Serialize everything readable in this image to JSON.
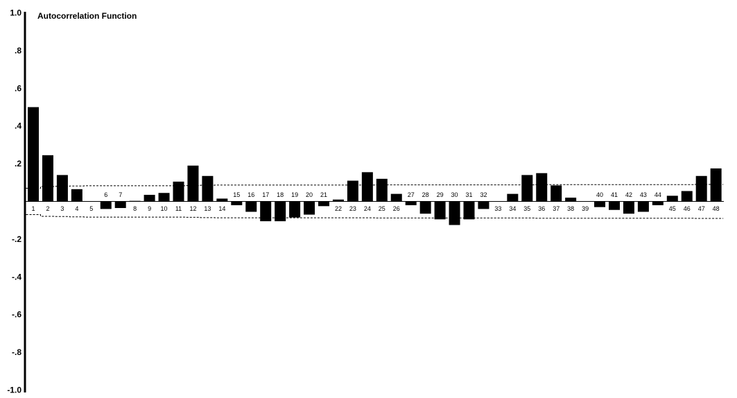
{
  "chart_data": {
    "type": "bar",
    "title": "Autocorrelation Function",
    "xlabel": "",
    "ylabel": "",
    "ylim": [
      -1.0,
      1.0
    ],
    "yticks": [
      {
        "value": 1.0,
        "label": "1.0"
      },
      {
        "value": 0.8,
        "label": ".8"
      },
      {
        "value": 0.6,
        "label": ".6"
      },
      {
        "value": 0.4,
        "label": ".4"
      },
      {
        "value": 0.2,
        "label": ".2"
      },
      {
        "value": -0.2,
        "label": "-.2"
      },
      {
        "value": -0.4,
        "label": "-.4"
      },
      {
        "value": -0.6,
        "label": "-.6"
      },
      {
        "value": -0.8,
        "label": "-.8"
      },
      {
        "value": -1.0,
        "label": "-1.0"
      }
    ],
    "categories": [
      "1",
      "2",
      "3",
      "4",
      "5",
      "6",
      "7",
      "8",
      "9",
      "10",
      "11",
      "12",
      "13",
      "14",
      "15",
      "16",
      "17",
      "18",
      "19",
      "20",
      "21",
      "22",
      "23",
      "24",
      "25",
      "26",
      "27",
      "28",
      "29",
      "30",
      "31",
      "32",
      "33",
      "34",
      "35",
      "36",
      "37",
      "38",
      "39",
      "40",
      "41",
      "42",
      "43",
      "44",
      "45",
      "46",
      "47",
      "48"
    ],
    "values": [
      0.5,
      0.245,
      0.14,
      0.065,
      0.0,
      -0.04,
      -0.035,
      0.003,
      0.035,
      0.045,
      0.105,
      0.19,
      0.135,
      0.015,
      -0.02,
      -0.055,
      -0.105,
      -0.105,
      -0.085,
      -0.07,
      -0.025,
      0.01,
      0.11,
      0.155,
      0.12,
      0.04,
      -0.02,
      -0.065,
      -0.095,
      -0.125,
      -0.095,
      -0.04,
      0.0,
      0.04,
      0.14,
      0.15,
      0.085,
      0.02,
      0.0,
      -0.03,
      -0.045,
      -0.065,
      -0.055,
      -0.02,
      0.03,
      0.055,
      0.135,
      0.175
    ],
    "confidence_band": {
      "upper": [
        0.07,
        0.079,
        0.08,
        0.082,
        0.083,
        0.083,
        0.083,
        0.083,
        0.083,
        0.083,
        0.083,
        0.084,
        0.086,
        0.087,
        0.087,
        0.087,
        0.087,
        0.087,
        0.087,
        0.087,
        0.087,
        0.087,
        0.087,
        0.087,
        0.088,
        0.088,
        0.088,
        0.088,
        0.088,
        0.088,
        0.088,
        0.088,
        0.088,
        0.088,
        0.088,
        0.089,
        0.089,
        0.089,
        0.089,
        0.089,
        0.089,
        0.089,
        0.089,
        0.089,
        0.089,
        0.089,
        0.09,
        0.09
      ],
      "lower": [
        -0.07,
        -0.079,
        -0.08,
        -0.082,
        -0.083,
        -0.083,
        -0.083,
        -0.083,
        -0.083,
        -0.083,
        -0.083,
        -0.084,
        -0.086,
        -0.087,
        -0.087,
        -0.087,
        -0.087,
        -0.087,
        -0.087,
        -0.087,
        -0.087,
        -0.087,
        -0.087,
        -0.087,
        -0.088,
        -0.088,
        -0.088,
        -0.088,
        -0.088,
        -0.088,
        -0.088,
        -0.088,
        -0.088,
        -0.088,
        -0.088,
        -0.089,
        -0.089,
        -0.089,
        -0.089,
        -0.089,
        -0.089,
        -0.089,
        -0.089,
        -0.089,
        -0.089,
        -0.089,
        -0.09,
        -0.09
      ]
    },
    "grid": false,
    "colors": {
      "bar": "#000000",
      "axis": "#000000",
      "band": "#000000",
      "background": "#ffffff"
    }
  }
}
